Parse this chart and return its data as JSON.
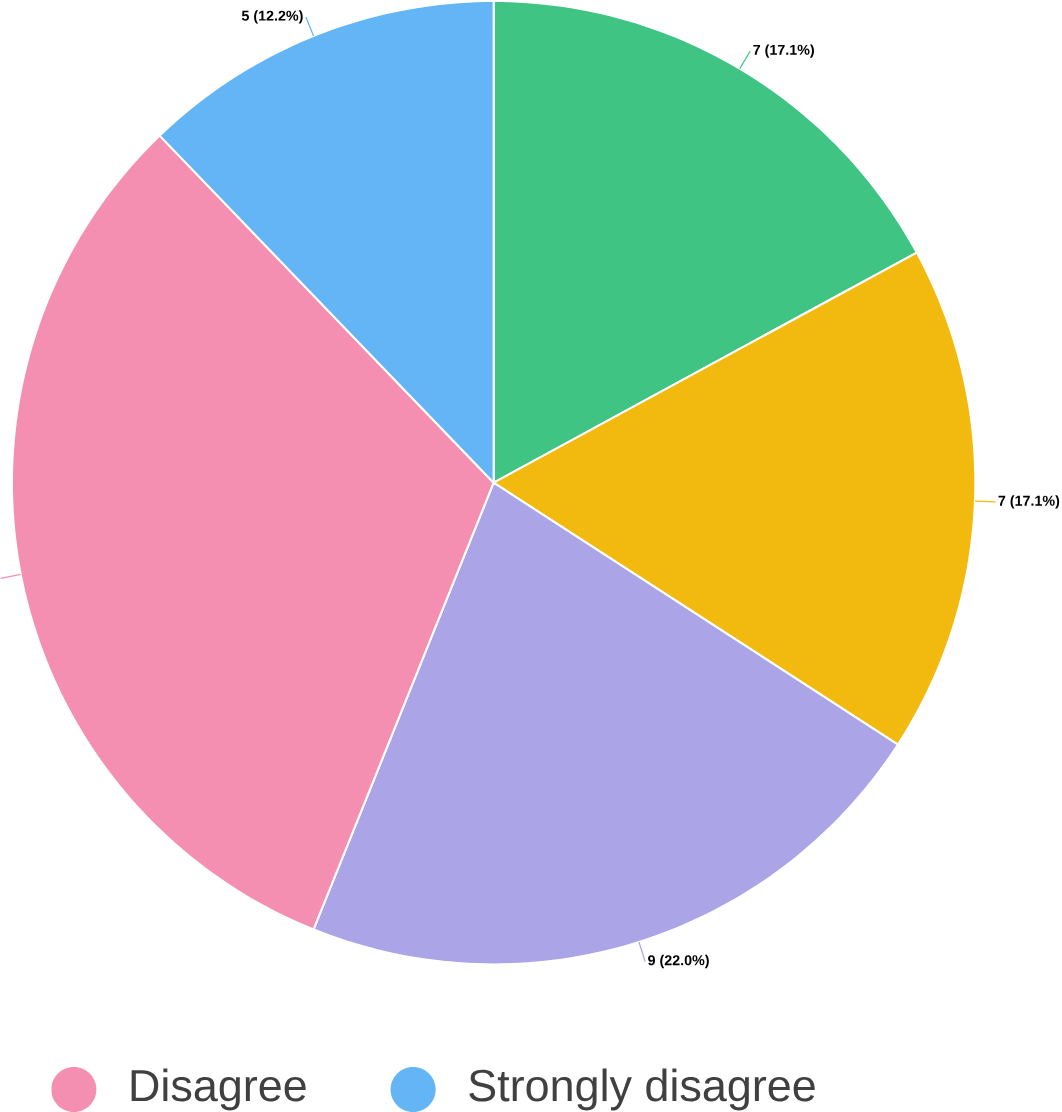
{
  "chart_data": {
    "type": "pie",
    "categories": [
      null,
      null,
      null,
      "Disagree",
      "Strongly disagree"
    ],
    "values": [
      7,
      7,
      9,
      13,
      5
    ],
    "colors": [
      "#40c484",
      "#f2b90f",
      "#aba4e6",
      "#f48fb1",
      "#64b5f6"
    ],
    "value_labels": [
      "7 (17.1%)",
      "7 (17.1%)",
      "9 (22.0%)",
      null,
      "5 (12.2%)"
    ],
    "legend": "bottom"
  }
}
